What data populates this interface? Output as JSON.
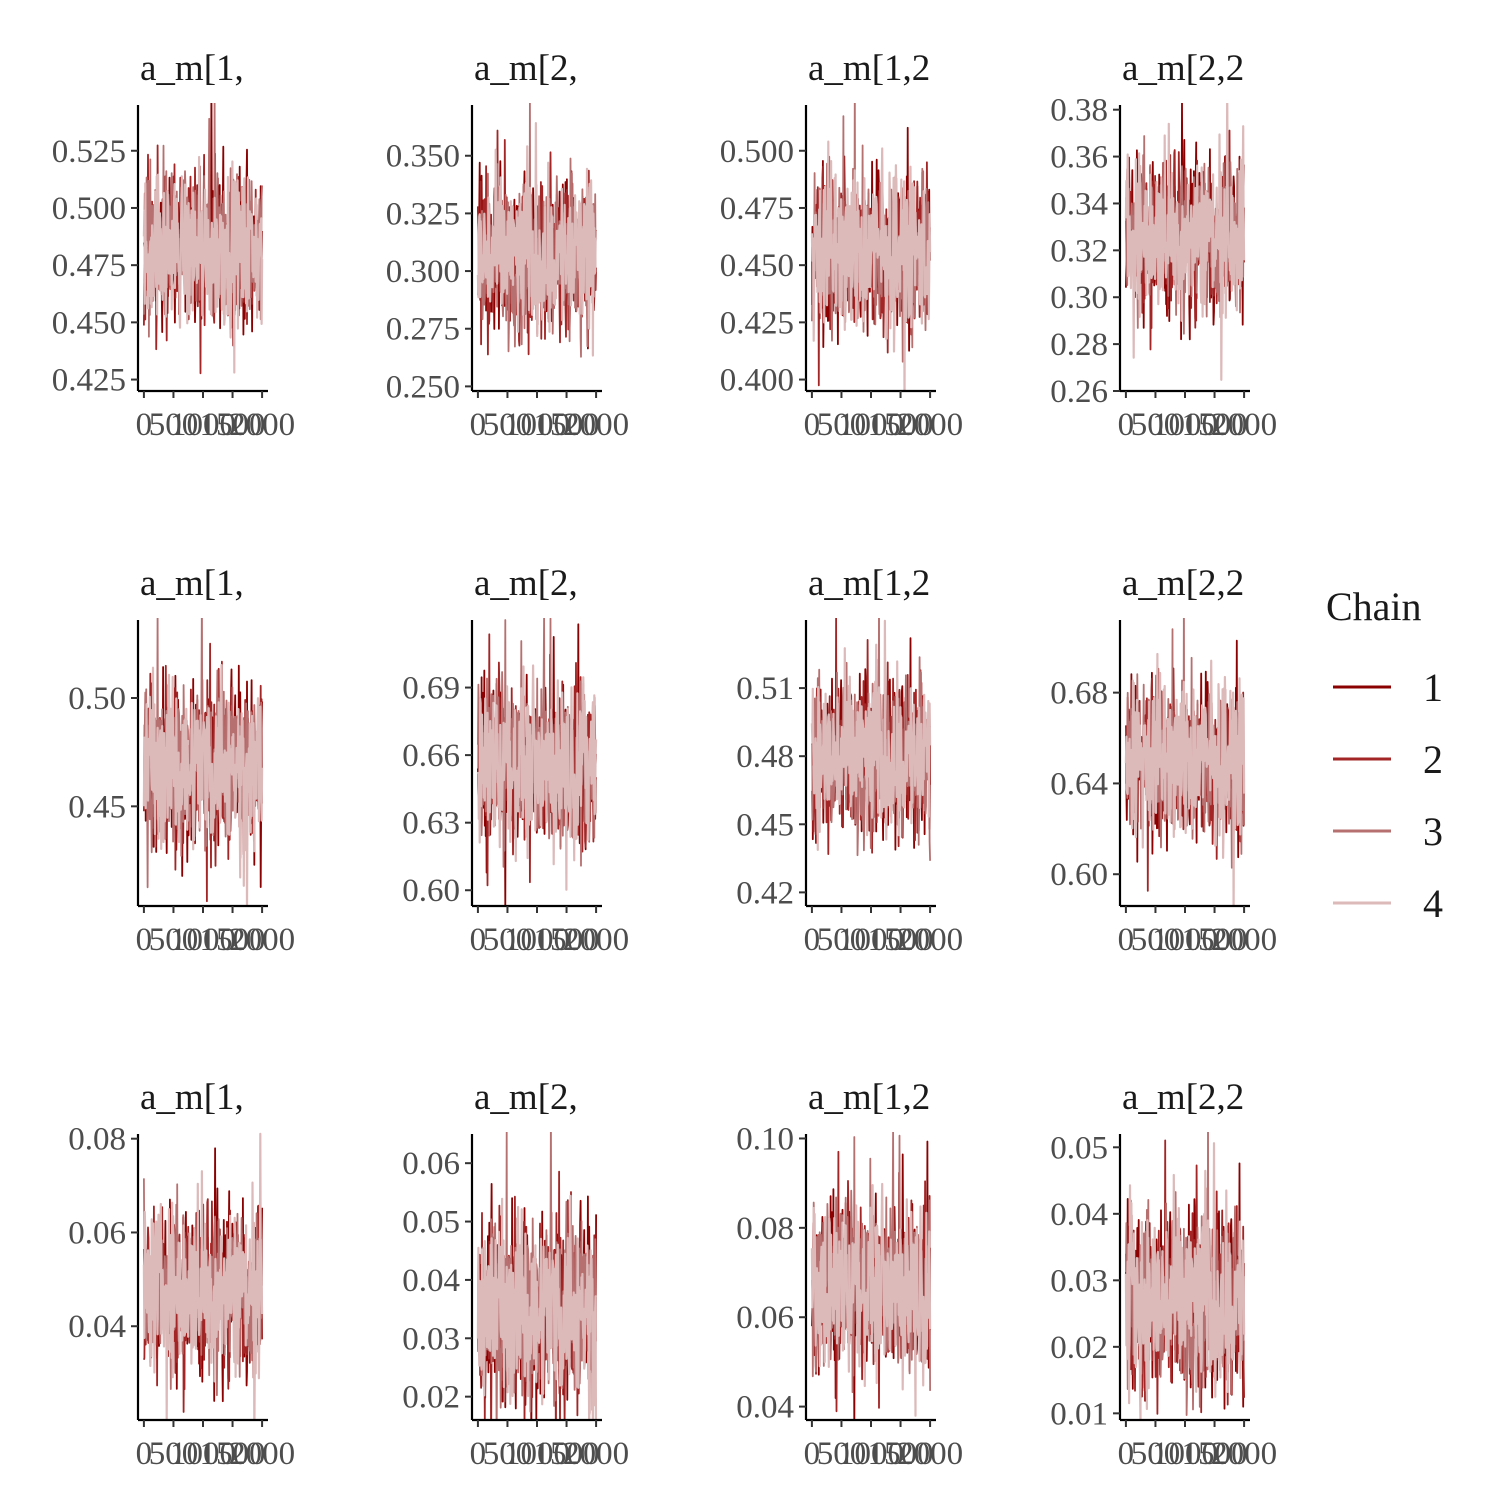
{
  "chart_data": {
    "type": "line",
    "legend": {
      "title": "Chain",
      "position": "right",
      "entries": [
        {
          "label": "1",
          "color": "#8b0000"
        },
        {
          "label": "2",
          "color": "#a32525"
        },
        {
          "label": "3",
          "color": "#b77070"
        },
        {
          "label": "4",
          "color": "#ddbaba"
        }
      ]
    },
    "x_ticks": [
      "0",
      "500",
      "1000",
      "1500",
      "2000"
    ],
    "xlim": [
      -100,
      2100
    ],
    "panels": [
      {
        "title": "a_m[1,",
        "ylim": [
          0.42,
          0.545
        ],
        "yticks": [
          0.425,
          0.45,
          0.475,
          0.5,
          0.525
        ],
        "ytick_labels": [
          "0.425",
          "0.450",
          "0.475",
          "0.500",
          "0.525"
        ],
        "center": 0.482,
        "spread": 0.045
      },
      {
        "title": "a_m[2,",
        "ylim": [
          0.248,
          0.372
        ],
        "yticks": [
          0.25,
          0.275,
          0.3,
          0.325,
          0.35
        ],
        "ytick_labels": [
          "0.250",
          "0.275",
          "0.300",
          "0.325",
          "0.350"
        ],
        "center": 0.307,
        "spread": 0.046
      },
      {
        "title": "a_m[1,2",
        "ylim": [
          0.395,
          0.52
        ],
        "yticks": [
          0.4,
          0.425,
          0.45,
          0.475,
          0.5
        ],
        "ytick_labels": [
          "0.400",
          "0.425",
          "0.450",
          "0.475",
          "0.500"
        ],
        "center": 0.456,
        "spread": 0.048
      },
      {
        "title": "a_m[2,2",
        "ylim": [
          0.26,
          0.382
        ],
        "yticks": [
          0.26,
          0.28,
          0.3,
          0.32,
          0.34,
          0.36,
          0.38
        ],
        "ytick_labels": [
          "0.26",
          "0.28",
          "0.30",
          "0.32",
          "0.34",
          "0.36",
          "0.38"
        ],
        "center": 0.327,
        "spread": 0.045
      },
      {
        "title": "a_m[1,",
        "ylim": [
          0.404,
          0.536
        ],
        "yticks": [
          0.45,
          0.5
        ],
        "ytick_labels": [
          "0.45",
          "0.50"
        ],
        "center": 0.469,
        "spread": 0.05
      },
      {
        "title": "a_m[2,",
        "ylim": [
          0.593,
          0.72
        ],
        "yticks": [
          0.6,
          0.63,
          0.66,
          0.69
        ],
        "ytick_labels": [
          "0.60",
          "0.63",
          "0.66",
          "0.69"
        ],
        "center": 0.656,
        "spread": 0.048
      },
      {
        "title": "a_m[1,2",
        "ylim": [
          0.414,
          0.54
        ],
        "yticks": [
          0.42,
          0.45,
          0.48,
          0.51
        ],
        "ytick_labels": [
          "0.42",
          "0.45",
          "0.48",
          "0.51"
        ],
        "center": 0.48,
        "spread": 0.048
      },
      {
        "title": "a_m[2,2",
        "ylim": [
          0.586,
          0.712
        ],
        "yticks": [
          0.6,
          0.64,
          0.68
        ],
        "ytick_labels": [
          "0.60",
          "0.64",
          "0.68"
        ],
        "center": 0.65,
        "spread": 0.047
      },
      {
        "title": "a_m[1,",
        "ylim": [
          0.02,
          0.081
        ],
        "yticks": [
          0.04,
          0.06,
          0.08
        ],
        "ytick_labels": [
          "0.04",
          "0.06",
          "0.08"
        ],
        "center": 0.048,
        "spread": 0.024
      },
      {
        "title": "a_m[2,",
        "ylim": [
          0.016,
          0.065
        ],
        "yticks": [
          0.02,
          0.03,
          0.04,
          0.05,
          0.06
        ],
        "ytick_labels": [
          "0.02",
          "0.03",
          "0.04",
          "0.05",
          "0.06"
        ],
        "center": 0.035,
        "spread": 0.021
      },
      {
        "title": "a_m[1,2",
        "ylim": [
          0.037,
          0.101
        ],
        "yticks": [
          0.04,
          0.06,
          0.08,
          0.1
        ],
        "ytick_labels": [
          "0.04",
          "0.06",
          "0.08",
          "0.10"
        ],
        "center": 0.067,
        "spread": 0.025
      },
      {
        "title": "a_m[2,2",
        "ylim": [
          0.009,
          0.052
        ],
        "yticks": [
          0.01,
          0.02,
          0.03,
          0.04,
          0.05
        ],
        "ytick_labels": [
          "0.01",
          "0.02",
          "0.03",
          "0.04",
          "0.05"
        ],
        "center": 0.027,
        "spread": 0.019
      }
    ]
  }
}
